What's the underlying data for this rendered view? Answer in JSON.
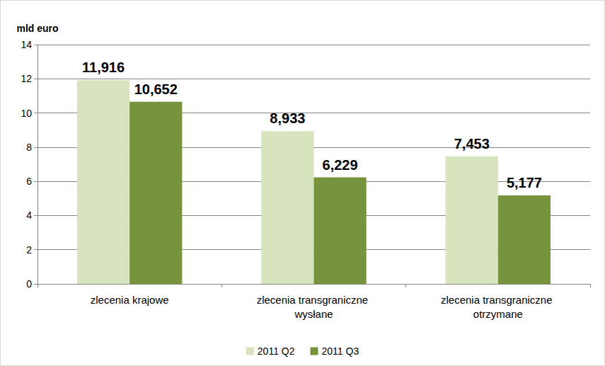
{
  "chart_data": {
    "type": "bar",
    "y_label": "mld euro",
    "categories": [
      "zlecenia krajowe",
      "zlecenia transgraniczne wysłane",
      "zlecenia transgraniczne otrzymane"
    ],
    "series": [
      {
        "name": "2011 Q2",
        "color": "#d7e4bd",
        "values": [
          11.916,
          8.933,
          7.453
        ],
        "value_labels": [
          "11,916",
          "8,933",
          "7,453"
        ]
      },
      {
        "name": "2011 Q3",
        "color": "#77933c",
        "values": [
          10.652,
          6.229,
          5.177
        ],
        "value_labels": [
          "10,652",
          "6,229",
          "5,177"
        ]
      }
    ],
    "ylim": [
      0,
      14
    ],
    "yticks": [
      0,
      2,
      4,
      6,
      8,
      10,
      12,
      14
    ],
    "grid": true,
    "legend": "bottom",
    "data_labels": true
  }
}
